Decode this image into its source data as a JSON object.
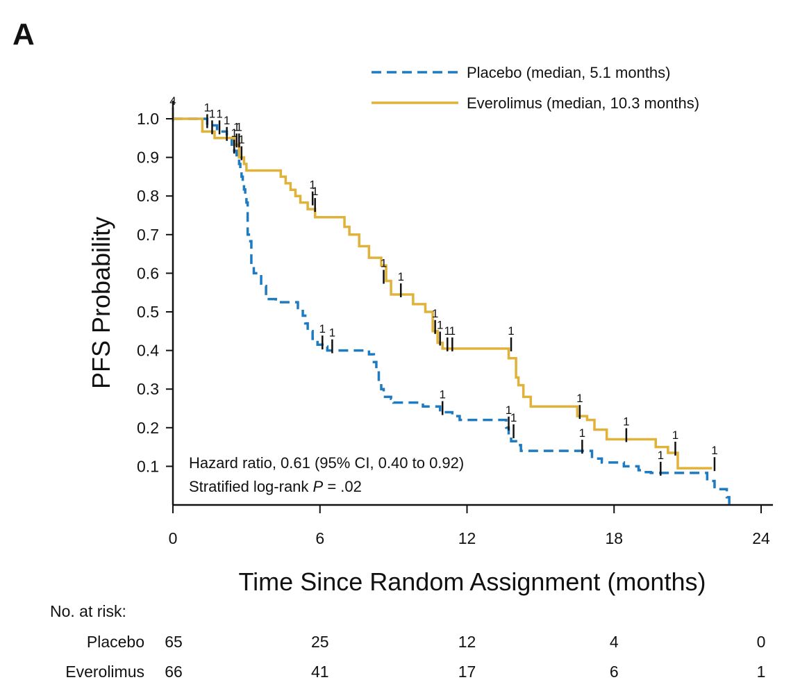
{
  "figure": {
    "panel_label": "A",
    "annotation": {
      "hr_text": "Hazard ratio, 0.61 (95% CI, 0.40 to 0.92)",
      "logrank_prefix": "Stratified log-rank ",
      "logrank_p_symbol": "P",
      "logrank_value": " = .02"
    },
    "at_risk": {
      "header": "No. at risk:",
      "rows": [
        {
          "label": "Placebo",
          "values": [
            "65",
            "25",
            "12",
            "4",
            "0"
          ]
        },
        {
          "label": "Everolimus",
          "values": [
            "66",
            "41",
            "17",
            "6",
            "1"
          ]
        }
      ]
    }
  },
  "chart_data": {
    "type": "line",
    "subtype": "kaplan-meier step",
    "xlabel": "Time Since Random Assignment (months)",
    "ylabel": "PFS Probability",
    "xlim": [
      0,
      24
    ],
    "ylim": [
      0,
      1.0
    ],
    "xticks": [
      "0",
      "6",
      "12",
      "18",
      "24"
    ],
    "xtick_values": [
      0,
      6,
      12,
      18,
      24
    ],
    "yticks": [
      "0.1",
      "0.2",
      "0.3",
      "0.4",
      "0.5",
      "0.6",
      "0.7",
      "0.8",
      "0.9",
      "1.0"
    ],
    "ytick_values": [
      0.1,
      0.2,
      0.3,
      0.4,
      0.5,
      0.6,
      0.7,
      0.8,
      0.9,
      1.0
    ],
    "grid": false,
    "legend_position": "top-right",
    "series": [
      {
        "name": "Placebo (median, 5.1 months)",
        "color": "#1f7bc1",
        "style": "dashed",
        "x": [
          0,
          1.4,
          1.8,
          2.2,
          2.4,
          2.5,
          2.6,
          2.7,
          2.75,
          2.8,
          2.85,
          2.9,
          2.95,
          3.0,
          3.05,
          3.1,
          3.2,
          3.3,
          3.6,
          3.8,
          4.2,
          5.1,
          5.3,
          5.4,
          5.5,
          5.7,
          5.9,
          6.1,
          6.3,
          8.0,
          8.2,
          8.3,
          8.4,
          8.5,
          8.6,
          8.9,
          9.0,
          10.2,
          10.9,
          11.4,
          11.7,
          13.6,
          13.7,
          13.8,
          14.0,
          14.2,
          17.1,
          17.5,
          18.4,
          19.0,
          19.1,
          19.5,
          20.6,
          21.8,
          22.1,
          22.5,
          22.6,
          22.7
        ],
        "y": [
          1.0,
          0.983,
          0.967,
          0.95,
          0.933,
          0.917,
          0.9,
          0.883,
          0.867,
          0.85,
          0.833,
          0.817,
          0.8,
          0.783,
          0.7,
          0.683,
          0.617,
          0.6,
          0.567,
          0.533,
          0.525,
          0.51,
          0.49,
          0.47,
          0.45,
          0.43,
          0.415,
          0.41,
          0.4,
          0.39,
          0.37,
          0.35,
          0.32,
          0.3,
          0.28,
          0.275,
          0.265,
          0.255,
          0.24,
          0.23,
          0.22,
          0.2,
          0.18,
          0.165,
          0.155,
          0.14,
          0.12,
          0.11,
          0.1,
          0.09,
          0.085,
          0.083,
          0.083,
          0.062,
          0.041,
          0.041,
          0.02,
          0.0
        ],
        "censor_x": [
          1.4,
          2.2,
          2.5,
          6.1,
          6.5,
          11.0,
          13.7,
          13.9,
          16.7,
          19.9
        ],
        "censor_y": [
          0.983,
          0.95,
          0.917,
          0.41,
          0.4,
          0.24,
          0.2,
          0.18,
          0.14,
          0.083
        ],
        "censor_counts": [
          "1",
          "1",
          "1",
          "1",
          "1",
          "1",
          "1",
          "1",
          "1",
          "1"
        ]
      },
      {
        "name": "Everolimus (median, 10.3 months)",
        "color": "#e0b23a",
        "style": "solid",
        "x": [
          0,
          1.2,
          1.7,
          2.5,
          2.7,
          2.9,
          3.0,
          4.4,
          4.6,
          4.8,
          5.0,
          5.2,
          5.5,
          5.8,
          7.0,
          7.2,
          7.6,
          8.0,
          8.5,
          8.7,
          8.9,
          9.8,
          10.3,
          10.6,
          10.8,
          11.0,
          13.7,
          14.0,
          14.1,
          14.3,
          14.6,
          16.5,
          16.9,
          17.2,
          17.7,
          18.6,
          19.7,
          20.2,
          20.6,
          21.0,
          22.0
        ],
        "y": [
          1.0,
          0.967,
          0.95,
          0.933,
          0.9,
          0.883,
          0.866,
          0.85,
          0.833,
          0.816,
          0.8,
          0.783,
          0.766,
          0.745,
          0.72,
          0.7,
          0.67,
          0.64,
          0.62,
          0.58,
          0.545,
          0.52,
          0.5,
          0.45,
          0.42,
          0.405,
          0.38,
          0.33,
          0.31,
          0.28,
          0.255,
          0.23,
          0.22,
          0.195,
          0.17,
          0.17,
          0.15,
          0.135,
          0.095,
          0.095,
          0.095
        ],
        "censor_x": [
          0.0,
          1.6,
          1.9,
          2.6,
          2.7,
          2.8,
          5.7,
          5.8,
          8.6,
          9.3,
          10.7,
          10.9,
          11.2,
          11.4,
          13.8,
          16.6,
          18.5,
          20.5,
          22.1
        ],
        "censor_y": [
          1.0,
          0.967,
          0.967,
          0.933,
          0.933,
          0.9,
          0.783,
          0.766,
          0.58,
          0.545,
          0.45,
          0.42,
          0.405,
          0.405,
          0.405,
          0.23,
          0.17,
          0.135,
          0.095
        ],
        "censor_counts": [
          "4",
          "1",
          "1",
          "1",
          "1",
          "1",
          "1",
          "1",
          "1",
          "1",
          "1",
          "1",
          "1",
          "1",
          "1",
          "1",
          "1",
          "1",
          "1"
        ]
      }
    ]
  }
}
